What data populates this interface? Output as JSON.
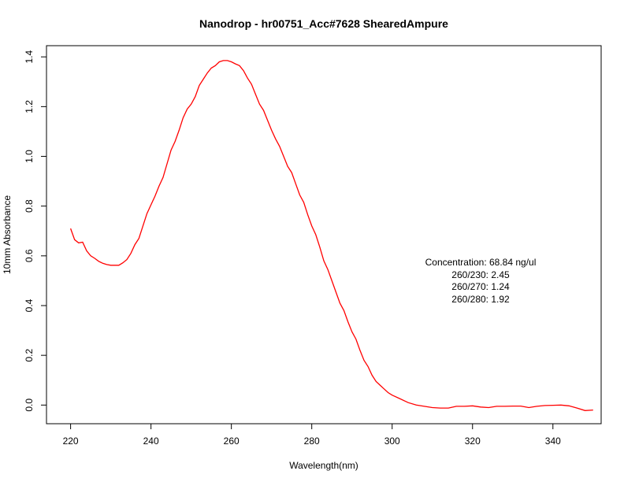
{
  "chart_data": {
    "type": "line",
    "title": "Nanodrop - hr00751_Acc#7628 ShearedAmpure",
    "xlabel": "Wavelength(nm)",
    "ylabel": "10mm Absorbance",
    "xlim": [
      214,
      352
    ],
    "ylim": [
      -0.075,
      1.445
    ],
    "x_ticks": [
      220,
      240,
      260,
      280,
      300,
      320,
      340
    ],
    "y_ticks": [
      0.0,
      0.2,
      0.4,
      0.6,
      0.8,
      1.0,
      1.2,
      1.4
    ],
    "x_tick_labels": [
      "220",
      "240",
      "260",
      "280",
      "300",
      "320",
      "340"
    ],
    "y_tick_labels": [
      "0.0",
      "0.2",
      "0.4",
      "0.6",
      "0.8",
      "1.0",
      "1.2",
      "1.4"
    ],
    "grid": false,
    "line_color": "#ff0000",
    "x": [
      220,
      221,
      222,
      223,
      224,
      225,
      226,
      227,
      228,
      229,
      230,
      231,
      232,
      233,
      234,
      235,
      236,
      237,
      238,
      239,
      240,
      241,
      242,
      243,
      244,
      245,
      246,
      247,
      248,
      249,
      250,
      251,
      252,
      253,
      254,
      255,
      256,
      257,
      258,
      259,
      260,
      261,
      262,
      263,
      264,
      265,
      266,
      267,
      268,
      269,
      270,
      271,
      272,
      273,
      274,
      275,
      276,
      277,
      278,
      279,
      280,
      281,
      282,
      283,
      284,
      285,
      286,
      287,
      288,
      289,
      290,
      291,
      292,
      293,
      294,
      295,
      296,
      297,
      298,
      299,
      300,
      302,
      304,
      306,
      308,
      310,
      312,
      314,
      316,
      318,
      320,
      322,
      324,
      326,
      328,
      330,
      332,
      334,
      336,
      338,
      340,
      342,
      344,
      346,
      348,
      350
    ],
    "y": [
      0.71,
      0.665,
      0.652,
      0.655,
      0.62,
      0.6,
      0.59,
      0.578,
      0.57,
      0.565,
      0.562,
      0.562,
      0.562,
      0.572,
      0.585,
      0.61,
      0.645,
      0.67,
      0.72,
      0.77,
      0.805,
      0.84,
      0.88,
      0.915,
      0.97,
      1.025,
      1.06,
      1.105,
      1.155,
      1.19,
      1.21,
      1.24,
      1.285,
      1.31,
      1.335,
      1.355,
      1.365,
      1.38,
      1.385,
      1.385,
      1.38,
      1.372,
      1.365,
      1.345,
      1.315,
      1.29,
      1.25,
      1.21,
      1.185,
      1.145,
      1.105,
      1.07,
      1.04,
      1.0,
      0.96,
      0.935,
      0.89,
      0.845,
      0.815,
      0.765,
      0.72,
      0.685,
      0.635,
      0.58,
      0.545,
      0.5,
      0.455,
      0.41,
      0.38,
      0.335,
      0.295,
      0.265,
      0.22,
      0.18,
      0.155,
      0.12,
      0.095,
      0.08,
      0.065,
      0.05,
      0.04,
      0.025,
      0.01,
      0.0,
      -0.005,
      -0.01,
      -0.012,
      -0.012,
      -0.005,
      -0.005,
      -0.003,
      -0.008,
      -0.01,
      -0.005,
      -0.005,
      -0.004,
      -0.004,
      -0.01,
      -0.005,
      -0.002,
      -0.001,
      0.0,
      -0.003,
      -0.012,
      -0.022,
      -0.02
    ]
  },
  "annotation": {
    "lines": [
      "Concentration: 68.84 ng/ul",
      "260/230: 2.45",
      "260/270: 1.24",
      "260/280: 1.92"
    ]
  }
}
